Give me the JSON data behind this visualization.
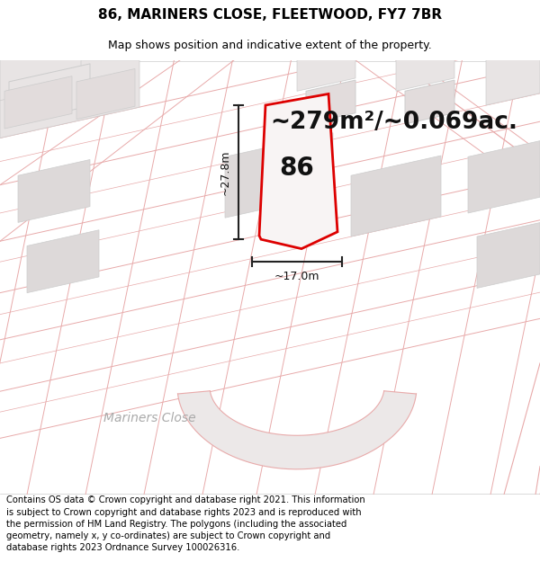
{
  "title_line1": "86, MARINERS CLOSE, FLEETWOOD, FY7 7BR",
  "title_line2": "Map shows position and indicative extent of the property.",
  "area_text": "~279m²/~0.069ac.",
  "label_number": "86",
  "dim_height": "~27.8m",
  "dim_width": "~17.0m",
  "street_label": "Mariners Close",
  "footer_text": "Contains OS data © Crown copyright and database right 2021. This information is subject to Crown copyright and database rights 2023 and is reproduced with the permission of HM Land Registry. The polygons (including the associated geometry, namely x, y co-ordinates) are subject to Crown copyright and database rights 2023 Ordnance Survey 100026316.",
  "map_bg": "#f7f4f4",
  "plot_edge_color": "#dd0000",
  "dim_line_color": "#222222",
  "road_line_color": "#e8aaaa",
  "building_fill": "#e8e4e4",
  "building_edge": "#cccccc",
  "street_color": "#aaaaaa",
  "title_fontsize": 11,
  "subtitle_fontsize": 9,
  "area_fontsize": 19,
  "number_fontsize": 20,
  "dim_fontsize": 9,
  "street_fontsize": 10,
  "footer_fontsize": 7.2
}
